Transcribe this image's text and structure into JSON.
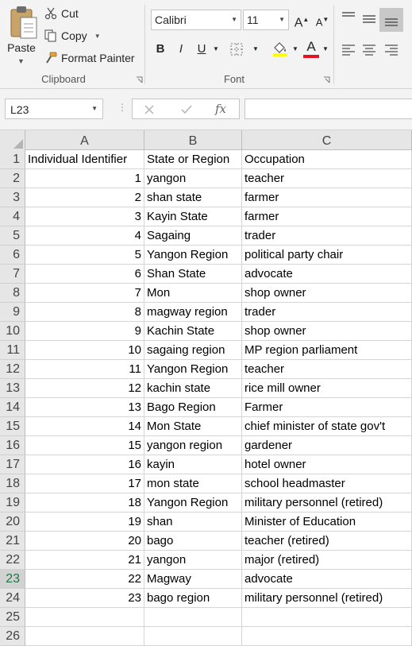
{
  "clipboard": {
    "paste_label": "Paste",
    "cut_label": "Cut",
    "copy_label": "Copy",
    "format_painter_label": "Format Painter",
    "group_label": "Clipboard"
  },
  "font": {
    "family": "Calibri",
    "size": "11",
    "group_label": "Font",
    "bold": "B",
    "italic": "I",
    "underline": "U",
    "font_color_letter": "A",
    "grow_letter": "A",
    "shrink_letter": "A",
    "highlight_color": "#ffff00",
    "font_color": "#e81123"
  },
  "formula_bar": {
    "name_box": "L23",
    "fx": "fx",
    "value": ""
  },
  "columns": [
    "A",
    "B",
    "C"
  ],
  "rows": [
    {
      "n": "1",
      "a": "Individual Identifier",
      "b": "State or Region",
      "c": "Occupation"
    },
    {
      "n": "2",
      "a": "1",
      "b": "yangon",
      "c": "teacher"
    },
    {
      "n": "3",
      "a": "2",
      "b": "shan state",
      "c": "farmer"
    },
    {
      "n": "4",
      "a": "3",
      "b": "Kayin State",
      "c": "farmer"
    },
    {
      "n": "5",
      "a": "4",
      "b": "Sagaing",
      "c": "trader"
    },
    {
      "n": "6",
      "a": "5",
      "b": "Yangon Region",
      "c": "political party chair"
    },
    {
      "n": "7",
      "a": "6",
      "b": "Shan State",
      "c": "advocate"
    },
    {
      "n": "8",
      "a": "7",
      "b": "Mon",
      "c": "shop owner"
    },
    {
      "n": "9",
      "a": "8",
      "b": "magway region",
      "c": "trader"
    },
    {
      "n": "10",
      "a": "9",
      "b": "Kachin State",
      "c": "shop owner"
    },
    {
      "n": "11",
      "a": "10",
      "b": "sagaing region",
      "c": "MP region parliament"
    },
    {
      "n": "12",
      "a": "11",
      "b": "Yangon Region",
      "c": "teacher"
    },
    {
      "n": "13",
      "a": "12",
      "b": "kachin state",
      "c": "rice mill owner"
    },
    {
      "n": "14",
      "a": "13",
      "b": "Bago Region",
      "c": "Farmer"
    },
    {
      "n": "15",
      "a": "14",
      "b": "Mon State",
      "c": "chief minister of state gov't"
    },
    {
      "n": "16",
      "a": "15",
      "b": "yangon region",
      "c": "gardener"
    },
    {
      "n": "17",
      "a": "16",
      "b": "kayin",
      "c": "hotel owner"
    },
    {
      "n": "18",
      "a": "17",
      "b": "mon state",
      "c": "school headmaster"
    },
    {
      "n": "19",
      "a": "18",
      "b": "Yangon Region",
      "c": "military personnel (retired)"
    },
    {
      "n": "20",
      "a": "19",
      "b": "shan",
      "c": "Minister of Education"
    },
    {
      "n": "21",
      "a": "20",
      "b": "bago",
      "c": "teacher (retired)"
    },
    {
      "n": "22",
      "a": "21",
      "b": "yangon",
      "c": "major (retired)"
    },
    {
      "n": "23",
      "a": "22",
      "b": "Magway",
      "c": "advocate"
    },
    {
      "n": "24",
      "a": "23",
      "b": "bago region",
      "c": "military personnel (retired)"
    },
    {
      "n": "25",
      "a": "",
      "b": "",
      "c": ""
    },
    {
      "n": "26",
      "a": "",
      "b": "",
      "c": ""
    }
  ],
  "active_row": "23",
  "accent_color": "#217346"
}
